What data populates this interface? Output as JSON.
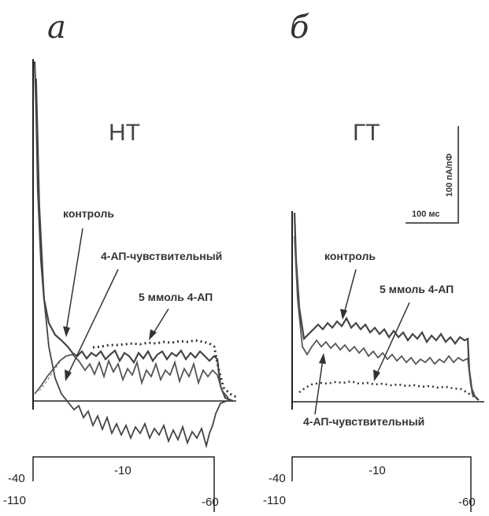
{
  "panels": [
    {
      "letter": "а",
      "condition": "НТ",
      "labels": {
        "control": "контроль",
        "sensitive": "4-АП-чувствительный",
        "blocked": "5 ммоль 4-АП"
      },
      "protocol": {
        "holding": "-40",
        "step": "-10",
        "end": "-60",
        "low": "-110"
      }
    },
    {
      "letter": "б",
      "condition": "ГТ",
      "labels": {
        "control": "контроль",
        "blocked": "5 ммоль 4-АП",
        "sensitive": "4-АП-чувствительный"
      },
      "protocol": {
        "holding": "-40",
        "step": "-10",
        "end": "-60",
        "low": "-110"
      }
    }
  ],
  "scale_bar": {
    "current": "100 пА/пФ",
    "time": "100 мс"
  },
  "colors": {
    "trace": "#444444",
    "dotted": "#333333",
    "axis": "#222222"
  },
  "chart_data": [
    {
      "type": "line",
      "panel": "а",
      "units": {
        "current": "пА/пФ",
        "time": "мс"
      },
      "series": [
        {
          "name": "контроль",
          "x": [
            0,
            5,
            10,
            20,
            30,
            40,
            60,
            100,
            150,
            200,
            250,
            275,
            290
          ],
          "y": [
            520,
            420,
            250,
            120,
            70,
            50,
            40,
            35,
            30,
            28,
            25,
            20,
            5
          ]
        },
        {
          "name": "5 ммоль 4-АП",
          "x": [
            0,
            10,
            20,
            30,
            40,
            60,
            100,
            150,
            200,
            250,
            275,
            290
          ],
          "y": [
            0,
            10,
            25,
            40,
            50,
            55,
            55,
            58,
            60,
            62,
            55,
            5
          ]
        },
        {
          "name": "4-АП-чувствительный",
          "x": [
            0,
            10,
            20,
            30,
            40,
            60,
            100,
            150,
            200,
            250,
            275,
            290
          ],
          "y": [
            520,
            400,
            200,
            80,
            30,
            0,
            -20,
            -30,
            -35,
            -40,
            -30,
            0
          ]
        }
      ]
    },
    {
      "type": "line",
      "panel": "б",
      "units": {
        "current": "пА/пФ",
        "time": "мс"
      },
      "series": [
        {
          "name": "контроль",
          "x": [
            0,
            5,
            10,
            20,
            30,
            50,
            80,
            120,
            160,
            200,
            230,
            240
          ],
          "y": [
            250,
            180,
            120,
            80,
            85,
            90,
            88,
            85,
            80,
            75,
            75,
            0
          ]
        },
        {
          "name": "5 ммоль 4-АП",
          "x": [
            0,
            5,
            10,
            20,
            30,
            50,
            80,
            120,
            160,
            200,
            230,
            240
          ],
          "y": [
            230,
            150,
            90,
            60,
            65,
            70,
            65,
            60,
            60,
            60,
            60,
            0
          ]
        },
        {
          "name": "4-АП-чувствительный",
          "x": [
            0,
            10,
            20,
            50,
            100,
            150,
            200,
            240
          ],
          "y": [
            0,
            10,
            15,
            18,
            15,
            15,
            12,
            0
          ]
        }
      ]
    }
  ]
}
